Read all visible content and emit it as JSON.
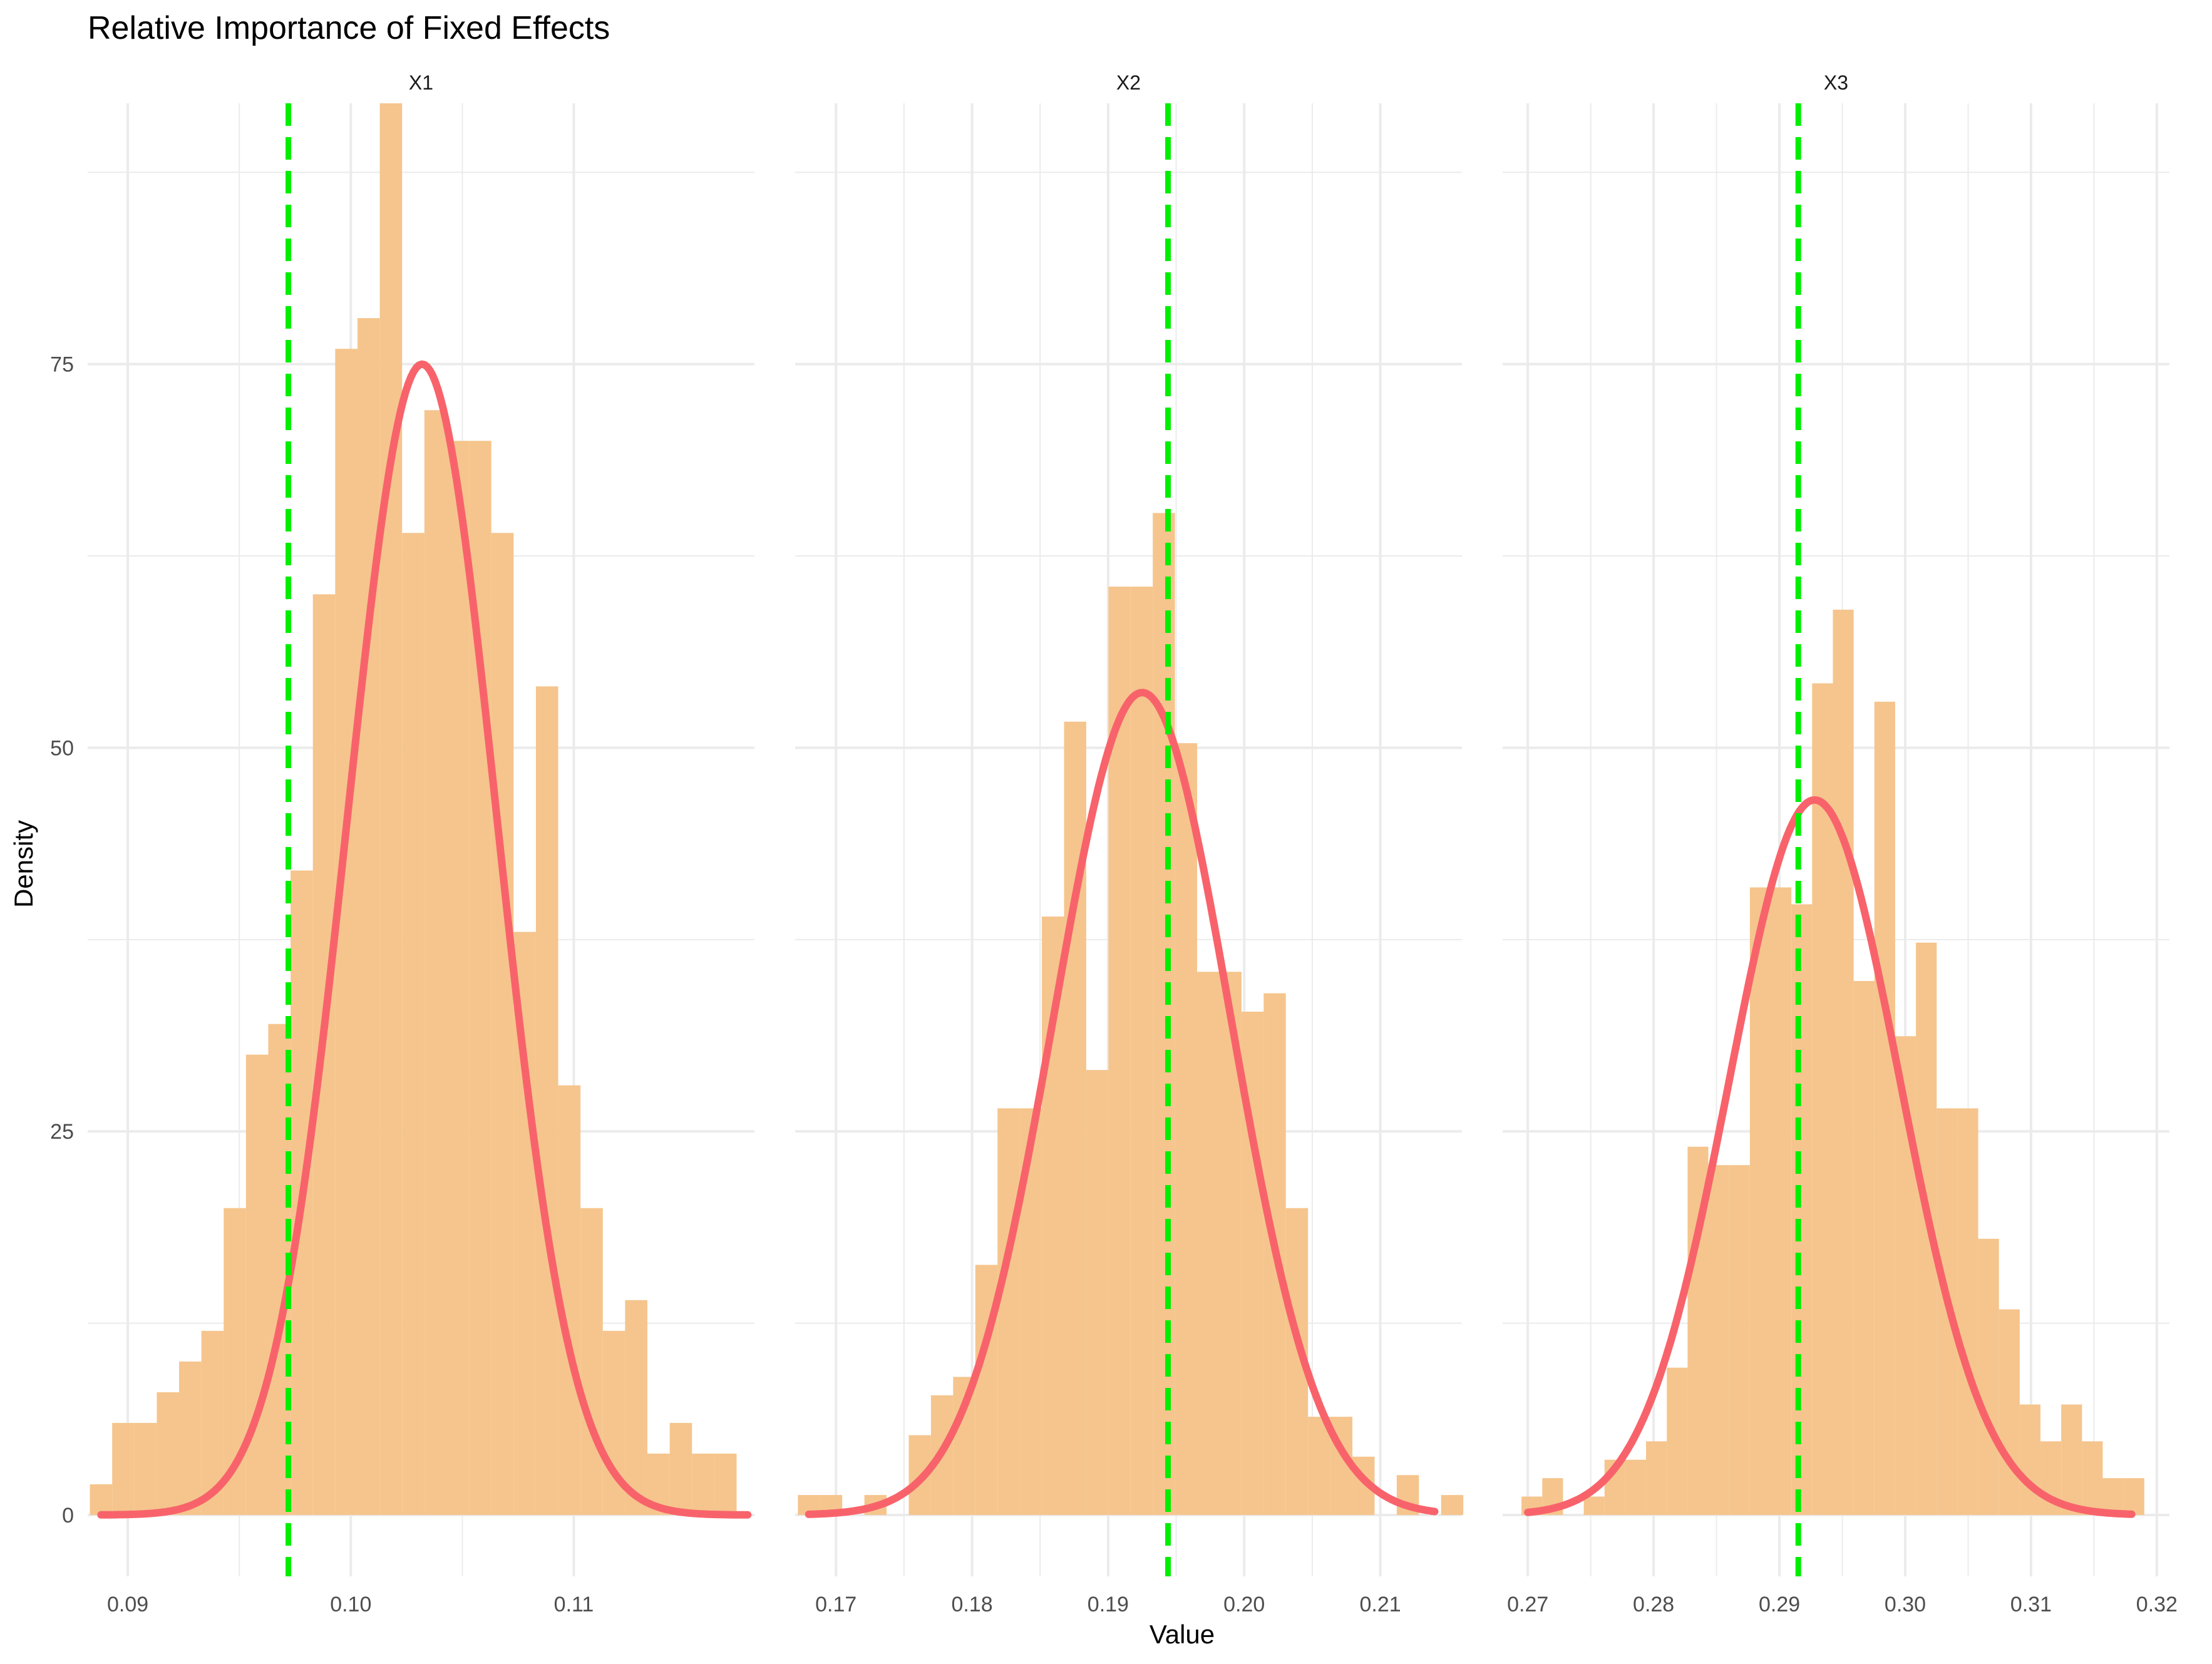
{
  "chart_data": {
    "type": "histogram",
    "title": "Relative Importance of Fixed Effects",
    "xlabel": "Value",
    "ylabel": "Density",
    "ylim": [
      -4,
      92
    ],
    "y_ticks": [
      0,
      25,
      50,
      75
    ],
    "grid": true,
    "colors": {
      "bars": "#f5c58d",
      "density": "#f8636b",
      "vline": "#00ee00",
      "grid": "#ebebeb"
    },
    "panels": [
      {
        "label": "X1",
        "xlim": [
          0.0882,
          0.1181
        ],
        "x_ticks": [
          0.09,
          0.1,
          0.11
        ],
        "x_tick_labels": [
          "0.09",
          "0.10",
          "0.11"
        ],
        "bin_start": 0.0883,
        "bin_width": 0.001,
        "values": [
          2,
          6,
          6,
          8,
          10,
          12,
          20,
          30,
          32,
          42,
          60,
          76,
          78,
          92,
          64,
          72,
          70,
          70,
          64,
          38,
          54,
          28,
          20,
          12,
          14,
          4,
          6,
          4,
          4
        ],
        "vline": 0.0972,
        "density": {
          "type": "normal",
          "mean": 0.1032,
          "peak": 75,
          "sd": 0.00335,
          "x_range": [
            0.0888,
            0.1178
          ]
        }
      },
      {
        "label": "X2",
        "xlim": [
          0.167,
          0.216
        ],
        "x_ticks": [
          0.17,
          0.18,
          0.19,
          0.2,
          0.21
        ],
        "x_tick_labels": [
          "0.17",
          "0.18",
          "0.19",
          "0.20",
          "0.21"
        ],
        "bin_start": 0.1672,
        "bin_width": 0.00163,
        "values": [
          1.3,
          1.3,
          0,
          1.3,
          0,
          5.2,
          7.8,
          9,
          16.3,
          26.5,
          26.5,
          39,
          51.7,
          29,
          60.5,
          60.5,
          65.3,
          50.3,
          35.4,
          35.4,
          32.8,
          34,
          20,
          6.4,
          6.4,
          3.8,
          0,
          2.6,
          0,
          1.3
        ],
        "vline": 0.1944,
        "density": {
          "type": "normal",
          "mean": 0.1925,
          "peak": 53.6,
          "sd": 0.0065,
          "x_range": [
            0.168,
            0.214
          ]
        }
      },
      {
        "label": "X3",
        "xlim": [
          0.268,
          0.321
        ],
        "x_ticks": [
          0.27,
          0.28,
          0.29,
          0.3,
          0.31,
          0.32
        ],
        "x_tick_labels": [
          "0.27",
          "0.28",
          "0.29",
          "0.30",
          "0.31",
          "0.32"
        ],
        "bin_start": 0.2695,
        "bin_width": 0.00165,
        "values": [
          1.2,
          2.4,
          0,
          1.2,
          3.6,
          3.6,
          4.8,
          9.6,
          24,
          22.8,
          22.8,
          40.9,
          40.9,
          39.8,
          54.2,
          59,
          34.8,
          53,
          31.2,
          37.3,
          26.5,
          26.5,
          18,
          13.4,
          7.2,
          4.8,
          7.2,
          4.8,
          2.4,
          2.4
        ],
        "vline": 0.2915,
        "density": {
          "type": "normal",
          "mean": 0.2928,
          "peak": 46.6,
          "sd": 0.0068,
          "x_range": [
            0.27,
            0.318
          ]
        }
      }
    ]
  }
}
